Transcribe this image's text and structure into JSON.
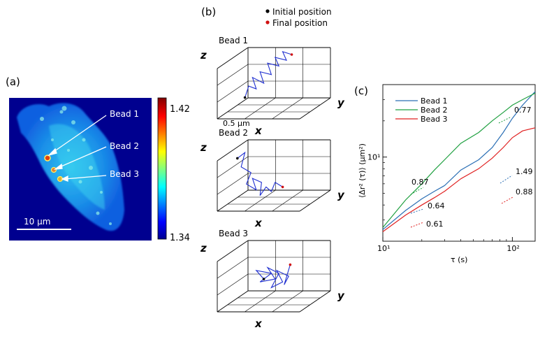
{
  "panels": {
    "a": "(a)",
    "b": "(b)",
    "c": "(c)"
  },
  "panel_a": {
    "beads": [
      "Bead 1",
      "Bead 2",
      "Bead 3"
    ],
    "scalebar": "10 μm",
    "colorbar_max": "1.42",
    "colorbar_min": "1.34"
  },
  "panel_b": {
    "legend_initial": "Initial position",
    "legend_final": "Final position",
    "legend_initial_color": "#000000",
    "legend_final_color": "#d01010",
    "trajectory_color": "#1f2fd0",
    "plots": [
      {
        "title": "Bead 1",
        "scale": "0.5 μm"
      },
      {
        "title": "Bead 2"
      },
      {
        "title": "Bead 3"
      }
    ],
    "axis_x": "x",
    "axis_y": "y",
    "axis_z": "z"
  },
  "chart_data": {
    "type": "line",
    "xscale": "log",
    "yscale": "log",
    "xlabel": "τ (s)",
    "ylabel": "⟨Δr² (τ)⟩ (μm²)",
    "xlim": [
      10,
      150
    ],
    "ylim": [
      0.2,
      4.0
    ],
    "xticks": [
      "10¹",
      "10²"
    ],
    "yticks": [
      "10¹"
    ],
    "legend_position": "top-left",
    "series": [
      {
        "name": "Bead 1",
        "color": "#2b6fb5",
        "x": [
          10,
          15,
          20,
          25,
          30,
          40,
          55,
          70,
          85,
          100,
          120,
          150
        ],
        "y": [
          0.25,
          0.36,
          0.45,
          0.52,
          0.58,
          0.78,
          0.95,
          1.2,
          1.6,
          2.1,
          2.7,
          3.5
        ]
      },
      {
        "name": "Bead 2",
        "color": "#1fa040",
        "x": [
          10,
          15,
          20,
          25,
          30,
          40,
          55,
          70,
          85,
          100,
          120,
          150
        ],
        "y": [
          0.26,
          0.44,
          0.6,
          0.78,
          0.95,
          1.3,
          1.6,
          2.0,
          2.35,
          2.7,
          3.0,
          3.4
        ]
      },
      {
        "name": "Bead 3",
        "color": "#e02020",
        "x": [
          10,
          15,
          20,
          25,
          30,
          40,
          55,
          70,
          85,
          100,
          120,
          150
        ],
        "y": [
          0.24,
          0.33,
          0.4,
          0.46,
          0.52,
          0.66,
          0.8,
          0.98,
          1.2,
          1.45,
          1.65,
          1.75
        ]
      }
    ],
    "slope_annotations": [
      "0.77",
      "0.87",
      "1.49",
      "0.88",
      "0.64",
      "0.61"
    ]
  }
}
